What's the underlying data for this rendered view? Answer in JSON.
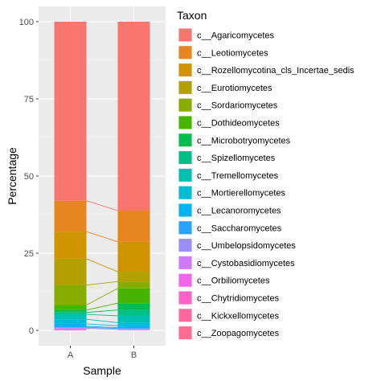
{
  "chart_data": {
    "type": "bar",
    "stacked": true,
    "categories": [
      "A",
      "B"
    ],
    "xlabel": "Sample",
    "ylabel": "Percentage",
    "ylim": [
      0,
      100
    ],
    "yticks": [
      0,
      25,
      50,
      75,
      100
    ],
    "legend_title": "Taxon",
    "legend_position": "right",
    "grid": true,
    "panel_background": "#ebebeb",
    "connector_lines": true,
    "series": [
      {
        "name": "c__Agaricomycetes",
        "color": "#F8766D",
        "values": [
          58.0,
          61.2
        ]
      },
      {
        "name": "c__Leotiomycetes",
        "color": "#E7851E",
        "values": [
          10.0,
          10.1
        ]
      },
      {
        "name": "c__Rozellomycotina_cls_Incertae_sedis",
        "color": "#D09400",
        "values": [
          8.8,
          9.7
        ]
      },
      {
        "name": "c__Eurotiomycetes",
        "color": "#B2A100",
        "values": [
          8.5,
          3.2
        ]
      },
      {
        "name": "c__Sordariomycetes",
        "color": "#89AC00",
        "values": [
          6.5,
          2.2
        ]
      },
      {
        "name": "c__Dothideomycetes",
        "color": "#45B500",
        "values": [
          1.6,
          4.8
        ]
      },
      {
        "name": "c__Microbotryomycetes",
        "color": "#00BC51",
        "values": [
          0.8,
          2.2
        ]
      },
      {
        "name": "c__Spizellomycetes",
        "color": "#00C087",
        "values": [
          0.6,
          1.9
        ]
      },
      {
        "name": "c__Tremellomycetes",
        "color": "#00C0B2",
        "values": [
          1.6,
          2.2
        ]
      },
      {
        "name": "c__Mortierellomycetes",
        "color": "#00BCD6",
        "values": [
          1.5,
          1.0
        ]
      },
      {
        "name": "c__Lecanoromycetes",
        "color": "#00B3F2",
        "values": [
          0.8,
          0.6
        ]
      },
      {
        "name": "c__Saccharomycetes",
        "color": "#29A3FF",
        "values": [
          0.3,
          0.3
        ]
      },
      {
        "name": "c__Umbelopsidomycetes",
        "color": "#9C8DFF",
        "values": [
          0.3,
          0.3
        ]
      },
      {
        "name": "c__Cystobasidiomycetes",
        "color": "#D277FF",
        "values": [
          0.2,
          0.1
        ]
      },
      {
        "name": "c__Orbiliomycetes",
        "color": "#F166E8",
        "values": [
          0.2,
          0.1
        ]
      },
      {
        "name": "c__Chytridiomycetes",
        "color": "#FF61C7",
        "values": [
          0.2,
          0.05
        ]
      },
      {
        "name": "c__Kickxellomycetes",
        "color": "#FF689E",
        "values": [
          0.1,
          0.05
        ]
      },
      {
        "name": "c__Zoopagomycetes",
        "color": "#FF6C91",
        "values": [
          0.0,
          0.0
        ]
      }
    ]
  }
}
